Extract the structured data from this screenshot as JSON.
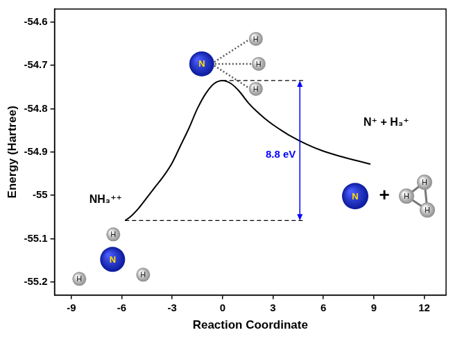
{
  "chart_data": {
    "type": "line",
    "x_label": "Reaction Coordinate",
    "y_label": "Energy (Hartree)",
    "color": "#000000",
    "x": [
      -5.8,
      -5.5,
      -5,
      -4.5,
      -4,
      -3.5,
      -3,
      -2.5,
      -2,
      -1.5,
      -1,
      -0.5,
      0,
      0.5,
      1,
      1.5,
      2,
      2.5,
      3,
      3.5,
      4,
      5,
      6,
      7,
      8,
      8.8
    ],
    "values": [
      -55.058,
      -55.05,
      -55.03,
      -55.005,
      -54.98,
      -54.955,
      -54.925,
      -54.885,
      -54.845,
      -54.8,
      -54.765,
      -54.742,
      -54.735,
      -54.742,
      -54.76,
      -54.785,
      -54.805,
      -54.822,
      -54.837,
      -54.85,
      -54.862,
      -54.882,
      -54.898,
      -54.91,
      -54.92,
      -54.928
    ],
    "xlim": [
      -10,
      13.3
    ],
    "xticks": [
      -9,
      -6,
      -3,
      0,
      3,
      6,
      9,
      12
    ],
    "ylim": [
      -55.23,
      -54.57
    ],
    "yticks": [
      -55.2,
      -55.1,
      -55.0,
      -54.9,
      -54.8,
      -54.7,
      -54.6
    ],
    "grid": false,
    "start_label": "NH₃⁺⁺",
    "end_label": "N⁺ + H₃⁺",
    "dashed_lines": [
      {
        "y": -54.735,
        "x": [
          0,
          4.9
        ]
      },
      {
        "y": -55.058,
        "x": [
          -5.8,
          4.9
        ]
      }
    ],
    "gap_arrow": {
      "x": 4.6,
      "y": [
        -55.058,
        -54.735
      ],
      "label": "8.8 eV",
      "color": "#0000ff"
    },
    "molecules": [
      {
        "atoms": [
          "N",
          "H",
          "H",
          "H"
        ]
      },
      {
        "atoms": [
          "N",
          "H",
          "H",
          "H"
        ]
      },
      {
        "atoms": [
          "N",
          "H",
          "H",
          "H"
        ],
        "joiner": "+"
      }
    ]
  }
}
